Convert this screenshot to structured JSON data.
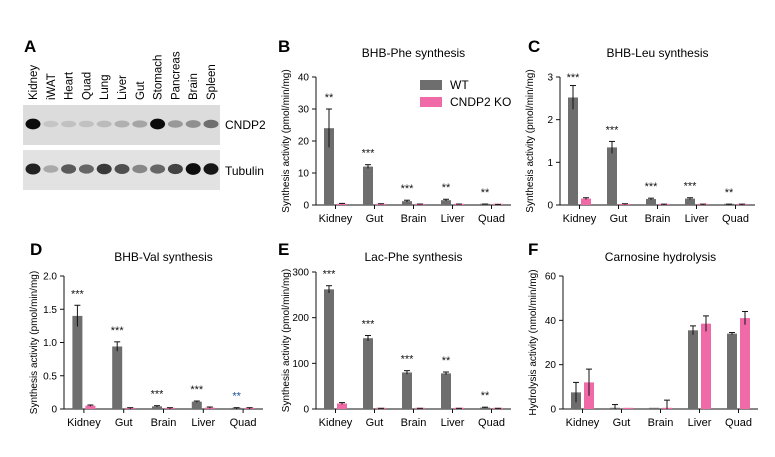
{
  "colors": {
    "wt": "#6e6e6e",
    "ko": "#f06aa8",
    "ko_sig": "#1a4fa0",
    "axis": "#111111"
  },
  "panel_a": {
    "letter": "A",
    "lanes": [
      "Kidney",
      "iWAT",
      "Heart",
      "Quad",
      "Lung",
      "Liver",
      "Gut",
      "Stomach",
      "Pancreas",
      "Brain",
      "Spleen"
    ],
    "bands": [
      "CNDP2",
      "Tubulin"
    ],
    "cndp2_intensity": [
      0.95,
      0.1,
      0.12,
      0.12,
      0.15,
      0.2,
      0.25,
      0.95,
      0.3,
      0.35,
      0.5
    ],
    "tubulin_intensity": [
      0.85,
      0.25,
      0.6,
      0.55,
      0.75,
      0.65,
      0.4,
      0.55,
      0.7,
      0.95,
      0.9
    ]
  },
  "legend": {
    "wt_label": "WT",
    "ko_label": "CNDP2 KO"
  },
  "chart_data": [
    {
      "letter": "B",
      "type": "bar",
      "title": "BHB-Phe synthesis",
      "ylabel": "Synthesis activity (pmol/min/mg)",
      "ylim": [
        0,
        40
      ],
      "yticks": [
        0,
        10,
        20,
        30,
        40
      ],
      "ytick_labels": [
        "0",
        "10",
        "20",
        "30",
        "40"
      ],
      "categories": [
        "Kidney",
        "Gut",
        "Brain",
        "Liver",
        "Quad"
      ],
      "series": [
        {
          "name": "WT",
          "values": [
            24,
            12,
            1.2,
            1.5,
            0.2
          ],
          "errors": [
            6,
            0.6,
            0.3,
            0.3,
            0.1
          ]
        },
        {
          "name": "CNDP2 KO",
          "values": [
            0.4,
            0.3,
            0.2,
            0.2,
            0.1
          ],
          "errors": [
            0.1,
            0.1,
            0.1,
            0.1,
            0.1
          ]
        }
      ],
      "significance": [
        "**",
        "***",
        "***",
        "**",
        "**"
      ],
      "sig_color": [
        "#111111",
        "#111111",
        "#111111",
        "#111111",
        "#111111"
      ]
    },
    {
      "letter": "C",
      "type": "bar",
      "title": "BHB-Leu synthesis",
      "ylabel": "Synthesis activity (pmol/min/mg)",
      "ylim": [
        0,
        3
      ],
      "yticks": [
        0,
        1,
        2,
        3
      ],
      "ytick_labels": [
        "0",
        "1",
        "2",
        "3"
      ],
      "categories": [
        "Kidney",
        "Gut",
        "Brain",
        "Liver",
        "Quad"
      ],
      "series": [
        {
          "name": "WT",
          "values": [
            2.52,
            1.35,
            0.14,
            0.15,
            0.01
          ],
          "errors": [
            0.28,
            0.14,
            0.02,
            0.02,
            0.01
          ]
        },
        {
          "name": "CNDP2 KO",
          "values": [
            0.15,
            0.02,
            0.01,
            0.01,
            0.01
          ],
          "errors": [
            0.02,
            0.01,
            0.01,
            0.01,
            0.01
          ]
        }
      ],
      "significance": [
        "***",
        "***",
        "***",
        "***",
        "**"
      ],
      "sig_color": [
        "#111111",
        "#111111",
        "#111111",
        "#111111",
        "#111111"
      ]
    },
    {
      "letter": "D",
      "type": "bar",
      "title": "BHB-Val synthesis",
      "ylabel": "Synthesis activity (pmol/min/mg)",
      "ylim": [
        0,
        2
      ],
      "yticks": [
        0,
        0.5,
        1,
        1.5,
        2
      ],
      "ytick_labels": [
        "0",
        "0.5",
        "1.0",
        "1.5",
        "2.0"
      ],
      "categories": [
        "Kidney",
        "Gut",
        "Brain",
        "Liver",
        "Quad"
      ],
      "series": [
        {
          "name": "WT",
          "values": [
            1.4,
            0.94,
            0.04,
            0.11,
            0.01
          ],
          "errors": [
            0.16,
            0.07,
            0.01,
            0.01,
            0.01
          ]
        },
        {
          "name": "CNDP2 KO",
          "values": [
            0.05,
            0.01,
            0.01,
            0.02,
            0.01
          ],
          "errors": [
            0.01,
            0.01,
            0.01,
            0.01,
            0.01
          ]
        }
      ],
      "significance": [
        "***",
        "***",
        "***",
        "***",
        "**"
      ],
      "sig_color": [
        "#111111",
        "#111111",
        "#111111",
        "#111111",
        "#1a4fa0"
      ]
    },
    {
      "letter": "E",
      "type": "bar",
      "title": "Lac-Phe synthesis",
      "ylabel": "Synthesis activity (pmol/min/mg)",
      "ylim": [
        0,
        300
      ],
      "yticks": [
        0,
        100,
        200,
        300
      ],
      "ytick_labels": [
        "0",
        "100",
        "200",
        "300"
      ],
      "categories": [
        "Kidney",
        "Gut",
        "Brain",
        "Liver",
        "Quad"
      ],
      "series": [
        {
          "name": "WT",
          "values": [
            262,
            155,
            80,
            78,
            3
          ],
          "errors": [
            8,
            6,
            4,
            3,
            1
          ]
        },
        {
          "name": "CNDP2 KO",
          "values": [
            12,
            1,
            1,
            1,
            1
          ],
          "errors": [
            2,
            0.5,
            0.5,
            0.5,
            0.5
          ]
        }
      ],
      "significance": [
        "***",
        "***",
        "***",
        "**",
        "**"
      ],
      "sig_color": [
        "#111111",
        "#111111",
        "#111111",
        "#111111",
        "#111111"
      ]
    },
    {
      "letter": "F",
      "type": "bar",
      "title": "Carnosine hydrolysis",
      "ylabel": "Hydrolysis activity (nmol/min/mg)",
      "ylim": [
        0,
        60
      ],
      "yticks": [
        0,
        20,
        40,
        60
      ],
      "ytick_labels": [
        "0",
        "20",
        "40",
        "60"
      ],
      "categories": [
        "Kidney",
        "Gut",
        "Brain",
        "Liver",
        "Quad"
      ],
      "series": [
        {
          "name": "WT",
          "values": [
            7.5,
            0.5,
            0,
            35.5,
            34
          ],
          "errors": [
            4.5,
            1.5,
            0,
            2,
            0.5
          ]
        },
        {
          "name": "CNDP2 KO",
          "values": [
            12,
            0,
            0.5,
            38.5,
            41
          ],
          "errors": [
            6,
            0,
            3.5,
            3.5,
            3
          ]
        }
      ],
      "significance": [
        "",
        "",
        "",
        "",
        ""
      ],
      "sig_color": [
        "#111111",
        "#111111",
        "#111111",
        "#111111",
        "#111111"
      ]
    }
  ]
}
